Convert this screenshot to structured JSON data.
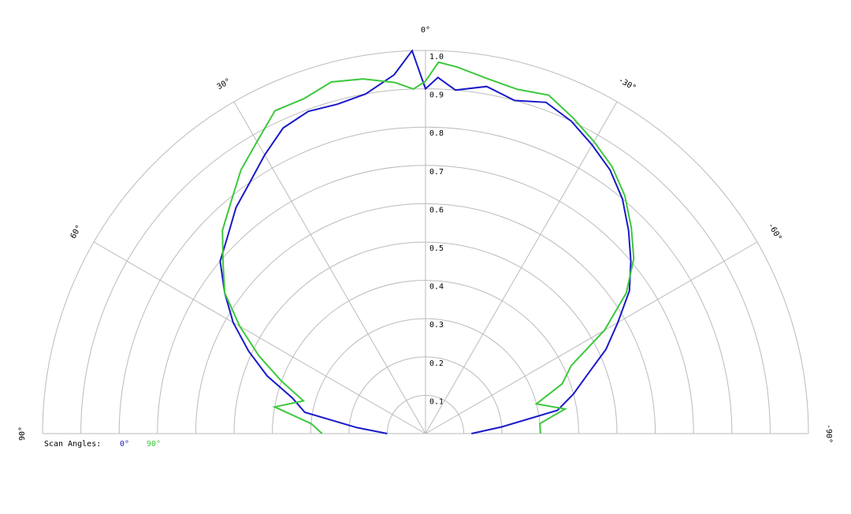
{
  "chart_data": {
    "type": "polar",
    "x": [
      -90,
      -85,
      -80,
      -75,
      -70,
      -65,
      -60,
      -55,
      -50,
      -45,
      -40,
      -35,
      -30,
      -25,
      -20,
      -15,
      -10,
      -5,
      -2,
      0,
      2,
      5,
      10,
      15,
      20,
      25,
      30,
      35,
      40,
      45,
      50,
      55,
      60,
      65,
      70,
      75,
      80,
      85,
      90
    ],
    "series": [
      {
        "name": "0°",
        "color": "#1a1ac8",
        "values": [
          0.12,
          0.2,
          0.35,
          0.4,
          0.45,
          0.52,
          0.58,
          0.65,
          0.7,
          0.75,
          0.8,
          0.84,
          0.87,
          0.9,
          0.92,
          0.9,
          0.92,
          0.9,
          0.93,
          0.9,
          1.0,
          0.94,
          0.9,
          0.89,
          0.895,
          0.88,
          0.84,
          0.8,
          0.77,
          0.73,
          0.7,
          0.64,
          0.58,
          0.51,
          0.44,
          0.36,
          0.32,
          0.18,
          0.1
        ]
      },
      {
        "name": "90°",
        "color": "#3cc83c",
        "values": [
          0.3,
          0.3,
          0.37,
          0.3,
          0.38,
          0.42,
          0.54,
          0.64,
          0.71,
          0.76,
          0.81,
          0.85,
          0.88,
          0.91,
          0.94,
          0.93,
          0.94,
          0.96,
          0.97,
          0.92,
          0.9,
          0.92,
          0.94,
          0.95,
          0.93,
          0.93,
          0.88,
          0.84,
          0.79,
          0.75,
          0.69,
          0.64,
          0.56,
          0.48,
          0.4,
          0.33,
          0.4,
          0.3,
          0.27
        ]
      }
    ],
    "rlim": [
      0,
      1
    ],
    "rticks": [
      0.1,
      0.2,
      0.3,
      0.4,
      0.5,
      0.6,
      0.7,
      0.8,
      0.9,
      {
        "value": 1,
        "label": "1.0"
      }
    ],
    "thetaticks": [
      {
        "value": 90,
        "label": "90°"
      },
      {
        "value": 60,
        "label": "60°"
      },
      {
        "value": 30,
        "label": "30°"
      },
      {
        "value": 0,
        "label": "0°"
      },
      {
        "value": -30,
        "label": "-30°"
      },
      {
        "value": -60,
        "label": "-60°"
      },
      {
        "value": -90,
        "label": "-90°"
      }
    ],
    "legend_title": "Scan Angles:",
    "grid": true
  }
}
